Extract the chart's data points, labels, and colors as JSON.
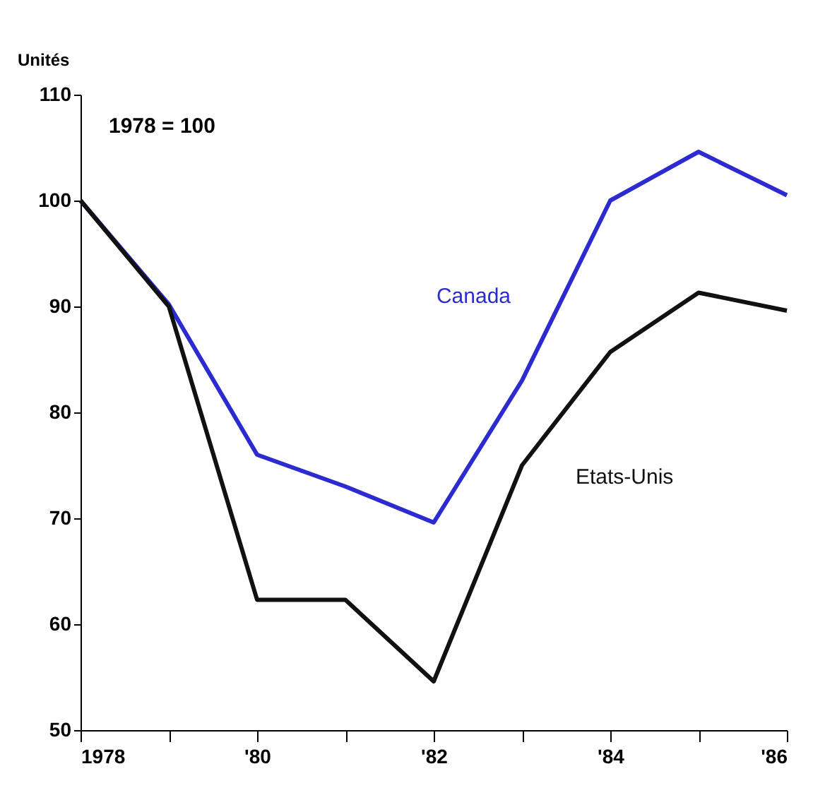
{
  "chart_data": {
    "type": "line",
    "ylabel": "Unités",
    "annotations": [
      "1978 = 100"
    ],
    "x": [
      1978,
      1979,
      1980,
      1981,
      1982,
      1983,
      1984,
      1985,
      1986
    ],
    "xlim": [
      1978,
      1986
    ],
    "xticks": [
      1978,
      {
        "value": 1979,
        "label": null
      },
      {
        "value": 1980,
        "label": "'80"
      },
      {
        "value": 1981,
        "label": null
      },
      {
        "value": 1982,
        "label": "'82"
      },
      {
        "value": 1983,
        "label": null
      },
      {
        "value": 1984,
        "label": "'84"
      },
      {
        "value": 1985,
        "label": null
      },
      {
        "value": 1986,
        "label": "'86"
      }
    ],
    "ylim": [
      50,
      110
    ],
    "yticks": [
      50,
      60,
      70,
      80,
      90,
      100,
      110
    ],
    "grid": false,
    "legend": false,
    "marker": "none",
    "line_style": "solid",
    "series": [
      {
        "name": "Canada",
        "color": "#2b2bd0",
        "values": [
          100,
          90.2,
          76,
          73,
          69.6,
          83,
          100,
          104.6,
          100.5
        ]
      },
      {
        "name": "Etats-Unis",
        "color": "#111111",
        "values": [
          100,
          90,
          62.3,
          62.3,
          54.6,
          75,
          85.7,
          91.3,
          89.6
        ]
      }
    ]
  }
}
